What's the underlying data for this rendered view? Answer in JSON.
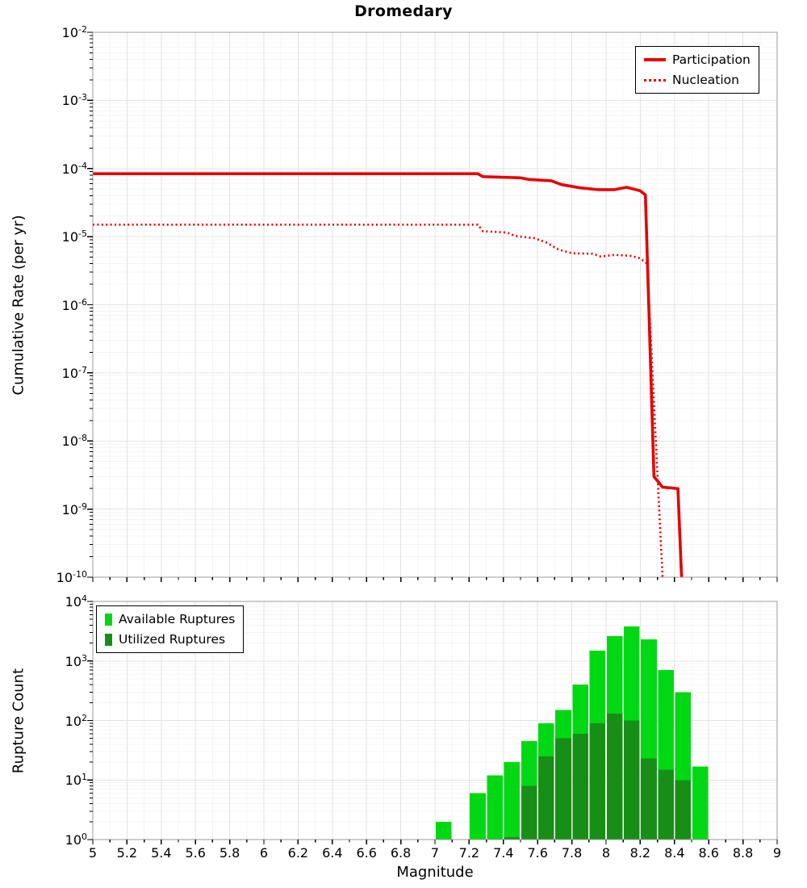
{
  "chart_data": [
    {
      "type": "line",
      "title": "Dromedary",
      "ylabel": "Cumulative Rate (per yr)",
      "xlabel": "Magnitude",
      "xlim": [
        5,
        9
      ],
      "ylim_log10": [
        -10,
        -2
      ],
      "x_tick_step": 0.2,
      "grid": true,
      "legend_position": "top-right",
      "y_tick_exponents": [
        -2,
        -3,
        -4,
        -5,
        -6,
        -7,
        -8,
        -9,
        -10
      ],
      "series": [
        {
          "name": "Participation",
          "style": "solid",
          "color": "#e60000",
          "points": [
            [
              5.0,
              8.4e-05
            ],
            [
              7.25,
              8.4e-05
            ],
            [
              7.28,
              7.6e-05
            ],
            [
              7.5,
              7.3e-05
            ],
            [
              7.55,
              6.9e-05
            ],
            [
              7.68,
              6.6e-05
            ],
            [
              7.74,
              5.8e-05
            ],
            [
              7.85,
              5.2e-05
            ],
            [
              7.95,
              4.9e-05
            ],
            [
              8.05,
              4.9e-05
            ],
            [
              8.12,
              5.3e-05
            ],
            [
              8.2,
              4.7e-05
            ],
            [
              8.23,
              4.1e-05
            ],
            [
              8.28,
              3e-09
            ],
            [
              8.33,
              2.1e-09
            ],
            [
              8.42,
              2e-09
            ],
            [
              8.44,
              1.2e-10
            ],
            [
              8.46,
              2e-11
            ]
          ]
        },
        {
          "name": "Nucleation",
          "style": "dotted",
          "color": "#e60000",
          "points": [
            [
              5.0,
              1.5e-05
            ],
            [
              7.25,
              1.5e-05
            ],
            [
              7.28,
              1.2e-05
            ],
            [
              7.42,
              1.15e-05
            ],
            [
              7.47,
              1.02e-05
            ],
            [
              7.58,
              9.5e-06
            ],
            [
              7.65,
              8.2e-06
            ],
            [
              7.72,
              6.5e-06
            ],
            [
              7.8,
              5.7e-06
            ],
            [
              7.92,
              5.6e-06
            ],
            [
              7.97,
              5.1e-06
            ],
            [
              8.05,
              5.4e-06
            ],
            [
              8.15,
              5.2e-06
            ],
            [
              8.2,
              4.8e-06
            ],
            [
              8.24,
              4e-06
            ],
            [
              8.33,
              1e-10
            ],
            [
              8.35,
              2e-11
            ]
          ]
        }
      ]
    },
    {
      "type": "bar",
      "ylabel": "Rupture Count",
      "xlabel": "Magnitude",
      "xlim": [
        5,
        9
      ],
      "ylim_log10": [
        0,
        4
      ],
      "bin_width": 0.1,
      "x_tick_step": 0.2,
      "grid": true,
      "legend_position": "top-left",
      "y_tick_exponents": [
        0,
        1,
        2,
        3,
        4
      ],
      "x_tick_labels": [
        "5",
        "5.2",
        "5.4",
        "5.6",
        "5.8",
        "6",
        "6.2",
        "6.4",
        "6.6",
        "6.8",
        "7",
        "7.2",
        "7.4",
        "7.6",
        "7.8",
        "8",
        "8.2",
        "8.4",
        "8.6",
        "8.8",
        "9"
      ],
      "series": [
        {
          "name": "Available Ruptures",
          "color": "#00d813",
          "bins": [
            [
              7.0,
              2
            ],
            [
              7.2,
              6
            ],
            [
              7.3,
              12
            ],
            [
              7.4,
              20
            ],
            [
              7.5,
              45
            ],
            [
              7.6,
              90
            ],
            [
              7.7,
              150
            ],
            [
              7.8,
              400
            ],
            [
              7.9,
              1500
            ],
            [
              8.0,
              2600
            ],
            [
              8.1,
              3800
            ],
            [
              8.2,
              2300
            ],
            [
              8.3,
              700
            ],
            [
              8.4,
              300
            ],
            [
              8.5,
              17
            ]
          ]
        },
        {
          "name": "Utilized Ruptures",
          "color": "#178f17",
          "bins": [
            [
              7.4,
              1
            ],
            [
              7.5,
              8
            ],
            [
              7.6,
              25
            ],
            [
              7.7,
              50
            ],
            [
              7.8,
              60
            ],
            [
              7.9,
              90
            ],
            [
              8.0,
              130
            ],
            [
              8.1,
              100
            ],
            [
              8.2,
              23
            ],
            [
              8.3,
              15
            ],
            [
              8.4,
              10
            ]
          ]
        }
      ]
    }
  ]
}
